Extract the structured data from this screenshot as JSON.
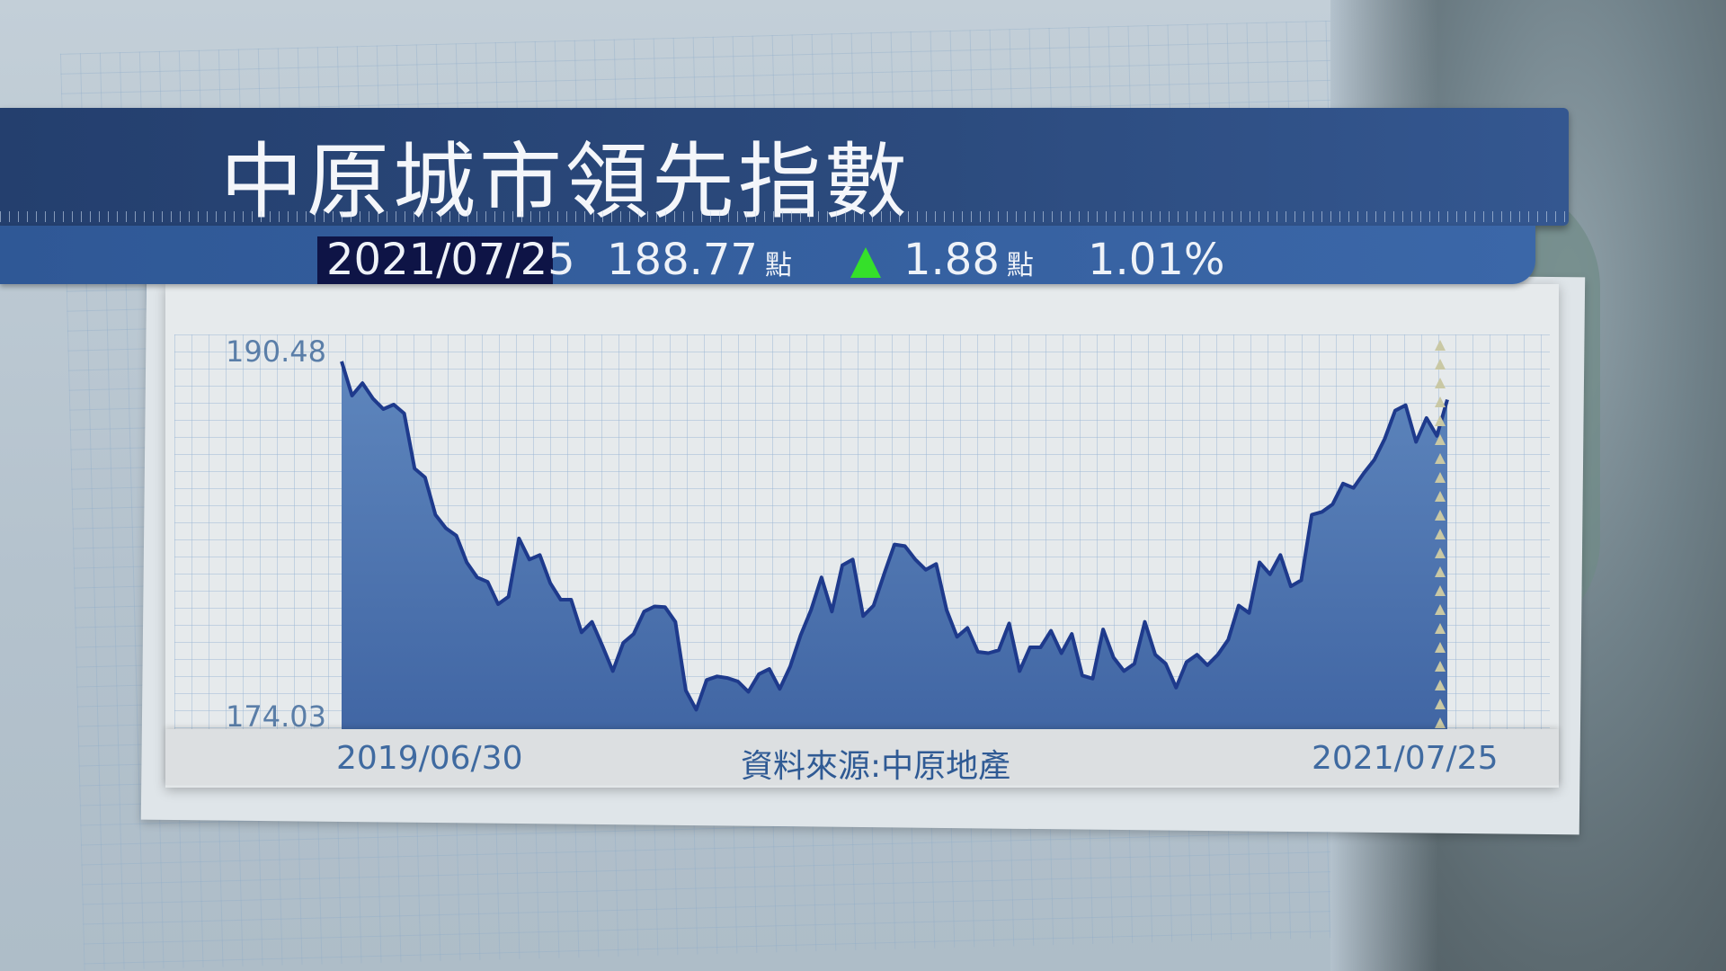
{
  "header": {
    "title": "中原城市領先指數",
    "date": "2021/07/25",
    "index_value": "188.77",
    "index_unit": "點",
    "change_direction": "up",
    "change_value": "1.88",
    "change_unit": "點",
    "change_percent": "1.01%"
  },
  "colors": {
    "banner": "#2c4b7e",
    "up_arrow": "#35e02a",
    "area_fill": "#4a70aa",
    "line": "#1e3a8c"
  },
  "chart_data": {
    "type": "area",
    "title": "中原城市領先指數",
    "source": "資料來源:中原地產",
    "x_start_label": "2019/06/30",
    "x_end_label": "2021/07/25",
    "y_tick_labels": [
      "190.48",
      "174.03"
    ],
    "ylim": [
      174.03,
      190.48
    ],
    "grid": true,
    "values": [
      190.48,
      188.95,
      189.51,
      188.82,
      188.35,
      188.55,
      188.15,
      185.69,
      185.29,
      183.62,
      183.02,
      182.69,
      181.49,
      180.82,
      180.62,
      179.62,
      179.96,
      182.56,
      181.62,
      181.82,
      180.56,
      179.82,
      179.82,
      178.36,
      178.83,
      177.76,
      176.63,
      177.89,
      178.29,
      179.29,
      179.52,
      179.49,
      178.83,
      175.76,
      174.9,
      176.23,
      176.39,
      176.32,
      176.16,
      175.7,
      176.49,
      176.72,
      175.83,
      176.83,
      178.23,
      179.36,
      180.82,
      179.29,
      181.36,
      181.62,
      179.09,
      179.56,
      180.96,
      182.29,
      182.22,
      181.62,
      181.16,
      181.42,
      179.36,
      178.16,
      178.56,
      177.49,
      177.43,
      177.56,
      178.76,
      176.63,
      177.69,
      177.69,
      178.43,
      177.43,
      178.29,
      176.43,
      176.29,
      178.49,
      177.23,
      176.63,
      176.96,
      178.83,
      177.36,
      176.96,
      175.89,
      177.03,
      177.36,
      176.89,
      177.36,
      178.03,
      179.56,
      179.23,
      181.49,
      180.96,
      181.82,
      180.42,
      180.69,
      183.62,
      183.75,
      184.09,
      185.02,
      184.82,
      185.49,
      186.08,
      187.02,
      188.28,
      188.52,
      186.88,
      187.95,
      187.15,
      188.77
    ]
  }
}
